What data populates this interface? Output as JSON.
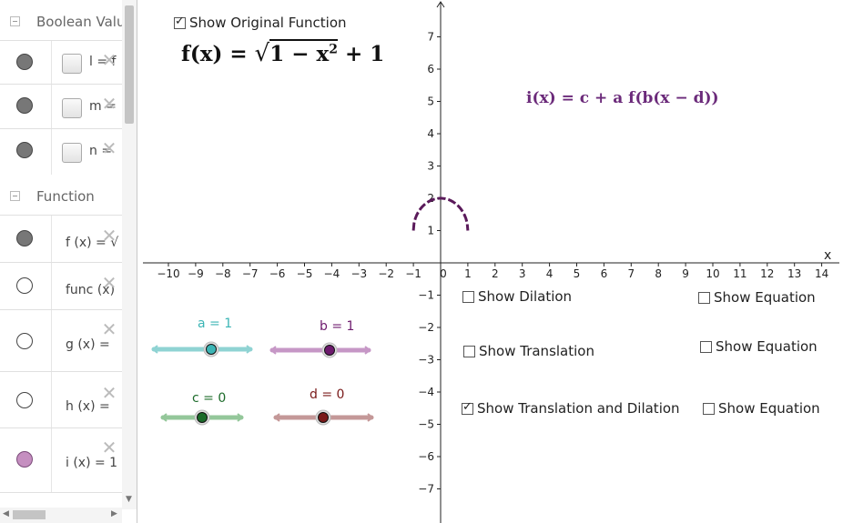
{
  "sidebar": {
    "boolean_group": "Boolean Valu",
    "function_group": "Function",
    "boolean_rows": [
      {
        "text": "l  = f"
      },
      {
        "text": "m ="
      },
      {
        "text": "n ="
      }
    ],
    "function_rows": [
      {
        "text": "f (x)  =  √"
      },
      {
        "text": "func (x)"
      },
      {
        "text": "g (x)  ="
      },
      {
        "text": "h (x)  ="
      },
      {
        "text": "i (x)  =  1"
      }
    ]
  },
  "graphics": {
    "show_original_label": "Show Original Function",
    "show_original_checked": true,
    "f_formula_lhs": "f(x) =",
    "f_formula_radicand": "1 − x",
    "f_formula_sup": "2",
    "f_formula_rhs": "+ 1",
    "i_formula": "i(x) = c + a f(b(x − d))",
    "x_axis_label": "x",
    "x_ticks": [
      "−10",
      "−9",
      "−8",
      "−7",
      "−6",
      "−5",
      "−4",
      "−3",
      "−2",
      "−1",
      "0",
      "1",
      "2",
      "3",
      "4",
      "5",
      "6",
      "7",
      "8",
      "9",
      "10",
      "11",
      "12",
      "13",
      "14"
    ],
    "y_ticks_pos": [
      "1",
      "2",
      "3",
      "4",
      "5",
      "6",
      "7"
    ],
    "y_ticks_neg": [
      "−1",
      "−2",
      "−3",
      "−4",
      "−5",
      "−6",
      "−7"
    ],
    "checkboxes": [
      {
        "label": "Show Dilation",
        "checked": false
      },
      {
        "label": "Show Equation",
        "checked": false
      },
      {
        "label": "Show Translation",
        "checked": false
      },
      {
        "label": "Show Equation",
        "checked": false
      },
      {
        "label": "Show Translation and Dilation",
        "checked": true
      },
      {
        "label": "Show Equation",
        "checked": false
      }
    ],
    "sliders": [
      {
        "label": "a = 1",
        "value": 1,
        "color": "#3cb5b5",
        "track": "#8fd3d3"
      },
      {
        "label": "b = 1",
        "value": 1,
        "color": "#6d1a6d",
        "track": "#c697c6"
      },
      {
        "label": "c = 0",
        "value": 0,
        "color": "#1c6b2a",
        "track": "#94c79a"
      },
      {
        "label": "d = 0",
        "value": 0,
        "color": "#7a1a1a",
        "track": "#c49898"
      }
    ],
    "curve_color": "#5a1a5a",
    "i_formula_color": "#6b2a7a"
  }
}
